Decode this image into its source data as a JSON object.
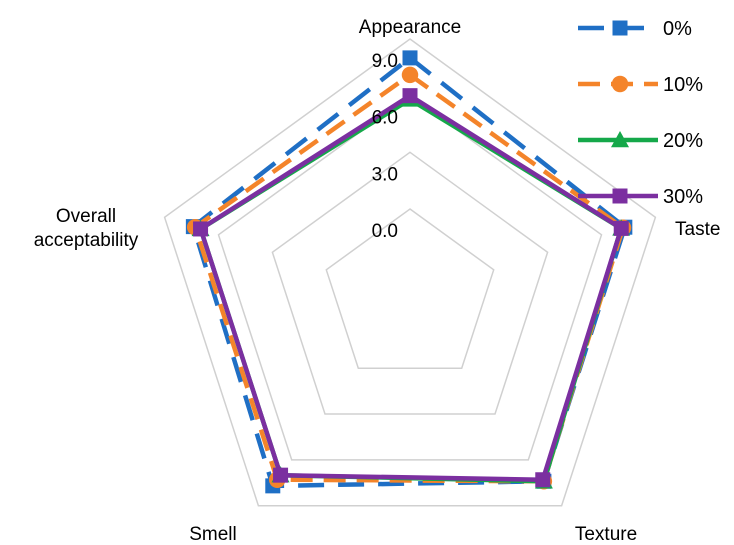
{
  "chart_data": {
    "type": "radar",
    "categories": [
      "Appearance",
      "Taste",
      "Texture",
      "Smell",
      "Overall\nacceptability"
    ],
    "rlim": [
      0,
      9
    ],
    "ticks": [
      "0.0",
      "3.0",
      "6.0",
      "9.0"
    ],
    "tick_values": [
      0,
      3,
      6,
      9
    ],
    "grid": true,
    "legend": "top-right",
    "series": [
      {
        "name": "0%",
        "values": [
          8.0,
          7.3,
          7.4,
          7.7,
          7.4
        ],
        "color": "#1f6fc5",
        "dash": "long-dash",
        "marker": "square"
      },
      {
        "name": "10%",
        "values": [
          7.1,
          7.2,
          7.4,
          7.3,
          7.3
        ],
        "color": "#f4842a",
        "dash": "dash",
        "marker": "circle"
      },
      {
        "name": "20%",
        "values": [
          5.8,
          7.1,
          7.4,
          7.0,
          7.0
        ],
        "color": "#15a84a",
        "dash": "solid",
        "marker": "triangle"
      },
      {
        "name": "30%",
        "values": [
          6.0,
          7.1,
          7.3,
          7.0,
          7.0
        ],
        "color": "#7b2fa0",
        "dash": "solid",
        "marker": "square"
      }
    ]
  }
}
